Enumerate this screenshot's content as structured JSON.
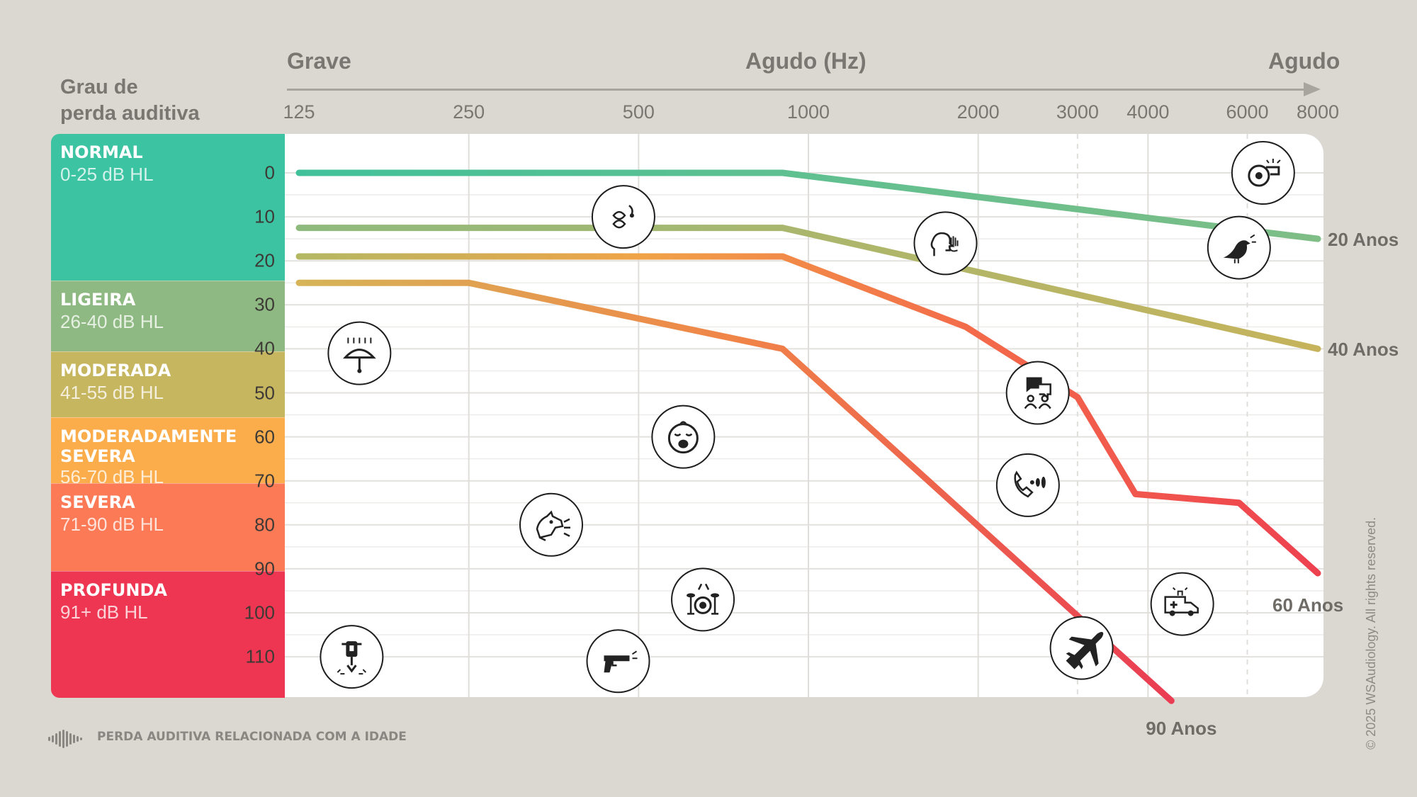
{
  "header": {
    "left_label": "Grave",
    "center_label": "Agudo (Hz)",
    "right_label": "Agudo",
    "degree_title": "Grau de\nperda auditiva"
  },
  "categories": [
    {
      "name": "NORMAL",
      "range": "0-25 dB HL",
      "color": "#3cc3a2"
    },
    {
      "name": "LIGEIRA",
      "range": "26-40 dB HL",
      "color": "#8fb982"
    },
    {
      "name": "MODERADA",
      "range": "41-55 dB HL",
      "color": "#c7b660"
    },
    {
      "name": "MODERADAMENTE SEVERA",
      "range": "56-70 dB HL",
      "color": "#fbad4c"
    },
    {
      "name": "SEVERA",
      "range": "71-90 dB HL",
      "color": "#fd7a57"
    },
    {
      "name": "PROFUNDA",
      "range": "91+ dB HL",
      "color": "#ee3652"
    }
  ],
  "chart_data": {
    "type": "line",
    "xlabel": "Agudo (Hz)",
    "x_scale": "log",
    "x_ticks": [
      "125",
      "250",
      "500",
      "1000",
      "2000",
      "3000",
      "4000",
      "6000",
      "8000"
    ],
    "x_tick_values": [
      125,
      250,
      500,
      1000,
      2000,
      3000,
      4000,
      6000,
      8000
    ],
    "y_ticks": [
      "0",
      "10",
      "20",
      "30",
      "40",
      "50",
      "60",
      "70",
      "80",
      "90",
      "100",
      "110"
    ],
    "y_tick_values": [
      0,
      10,
      20,
      30,
      40,
      50,
      60,
      70,
      80,
      90,
      100,
      110
    ],
    "ylim": [
      -9,
      120
    ],
    "y_inverted": true,
    "grid": true,
    "series": [
      {
        "name": "20 Anos",
        "color": "#5bbd94",
        "points": [
          [
            125,
            0
          ],
          [
            900,
            0
          ],
          [
            8000,
            15
          ]
        ]
      },
      {
        "name": "40 Anos",
        "color": "#c9b45c",
        "points": [
          [
            125,
            12.5
          ],
          [
            900,
            12.5
          ],
          [
            8000,
            40
          ]
        ]
      },
      {
        "name": "60 Anos",
        "color": "#f36a4a",
        "points": [
          [
            125,
            19
          ],
          [
            900,
            19
          ],
          [
            1900,
            35
          ],
          [
            3000,
            51
          ],
          [
            3800,
            73
          ],
          [
            5800,
            75
          ],
          [
            8000,
            91
          ]
        ]
      },
      {
        "name": "90 Anos",
        "color": "#ea3c53",
        "points": [
          [
            125,
            25
          ],
          [
            250,
            25
          ],
          [
            900,
            40
          ],
          [
            4400,
            120
          ]
        ]
      }
    ],
    "annotations": [
      {
        "icon": "leaves-rustling-icon",
        "freq": 470,
        "db": 10
      },
      {
        "icon": "whisper-icon",
        "freq": 1750,
        "db": 16
      },
      {
        "icon": "whistle-icon",
        "freq": 6400,
        "db": 0
      },
      {
        "icon": "bird-icon",
        "freq": 5800,
        "db": 17
      },
      {
        "icon": "rain-umbrella-icon",
        "freq": 160,
        "db": 41
      },
      {
        "icon": "conversation-icon",
        "freq": 2550,
        "db": 50
      },
      {
        "icon": "crying-baby-icon",
        "freq": 600,
        "db": 60
      },
      {
        "icon": "telephone-icon",
        "freq": 2450,
        "db": 71
      },
      {
        "icon": "barking-dog-icon",
        "freq": 350,
        "db": 80
      },
      {
        "icon": "drum-kit-icon",
        "freq": 650,
        "db": 97
      },
      {
        "icon": "ambulance-icon",
        "freq": 4600,
        "db": 98
      },
      {
        "icon": "jackhammer-icon",
        "freq": 155,
        "db": 110
      },
      {
        "icon": "gunshot-icon",
        "freq": 460,
        "db": 111
      },
      {
        "icon": "airplane-icon",
        "freq": 3050,
        "db": 108
      }
    ]
  },
  "footer": {
    "label": "PERDA AUDITIVA RELACIONADA COM A IDADE"
  },
  "copyright": "© 2025 WSAudiology. All rights reserved."
}
